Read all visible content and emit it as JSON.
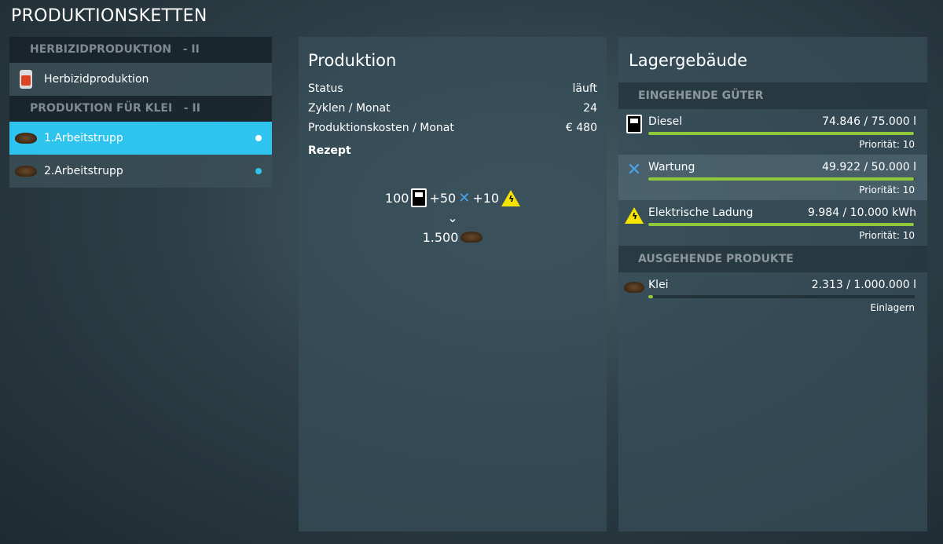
{
  "title": "PRODUKTIONSKETTEN",
  "sidebar": {
    "groups": [
      {
        "label": "HERBIZIDPRODUKTION",
        "suffix": "- II",
        "items": [
          {
            "label": "Herbizidproduktion",
            "icon": "herbicide-can-icon"
          }
        ]
      },
      {
        "label": "PRODUKTION FÜR KLEI",
        "suffix": "- II",
        "items": [
          {
            "label": "1.Arbeitstrupp",
            "icon": "bran-pile-icon",
            "selected": true
          },
          {
            "label": "2.Arbeitstrupp",
            "icon": "bran-pile-icon"
          }
        ]
      }
    ]
  },
  "production": {
    "title": "Produktion",
    "rows": [
      {
        "label": "Status",
        "value": "läuft"
      },
      {
        "label": "Zyklen / Monat",
        "value": "24"
      },
      {
        "label": "Produktionskosten / Monat",
        "value": "€ 480"
      }
    ],
    "recipe_label": "Rezept",
    "recipe": {
      "inputs": [
        {
          "amount": "100",
          "icon": "fuel-pump-icon"
        },
        {
          "amount": "+50",
          "icon": "wrench-screwdriver-icon"
        },
        {
          "amount": "+10",
          "icon": "electricity-warning-icon"
        }
      ],
      "output": {
        "amount": "1.500",
        "icon": "bran-pile-icon"
      }
    }
  },
  "storage": {
    "title": "Lagergebäude",
    "incoming_header": "EINGEHENDE GÜTER",
    "incoming": [
      {
        "name": "Diesel",
        "amount": "74.846  / 75.000 l",
        "fill": 0.998,
        "sub": "Priorität: 10",
        "icon": "fuel-pump-icon"
      },
      {
        "name": "Wartung",
        "amount": "49.922  / 50.000 l",
        "fill": 0.998,
        "sub": "Priorität: 10",
        "icon": "wrench-screwdriver-icon"
      },
      {
        "name": "Elektrische Ladung",
        "amount": "9.984  / 10.000 kWh",
        "fill": 0.998,
        "sub": "Priorität: 10",
        "icon": "electricity-warning-icon"
      }
    ],
    "outgoing_header": "AUSGEHENDE PRODUKTE",
    "outgoing": [
      {
        "name": "Klei",
        "amount": "2.313  / 1.000.000 l",
        "fill": 0.0023,
        "sub": "Einlagern",
        "icon": "bran-pile-icon"
      }
    ]
  },
  "colors": {
    "accent": "#2ec4ee",
    "bar": "#8fc93a"
  }
}
